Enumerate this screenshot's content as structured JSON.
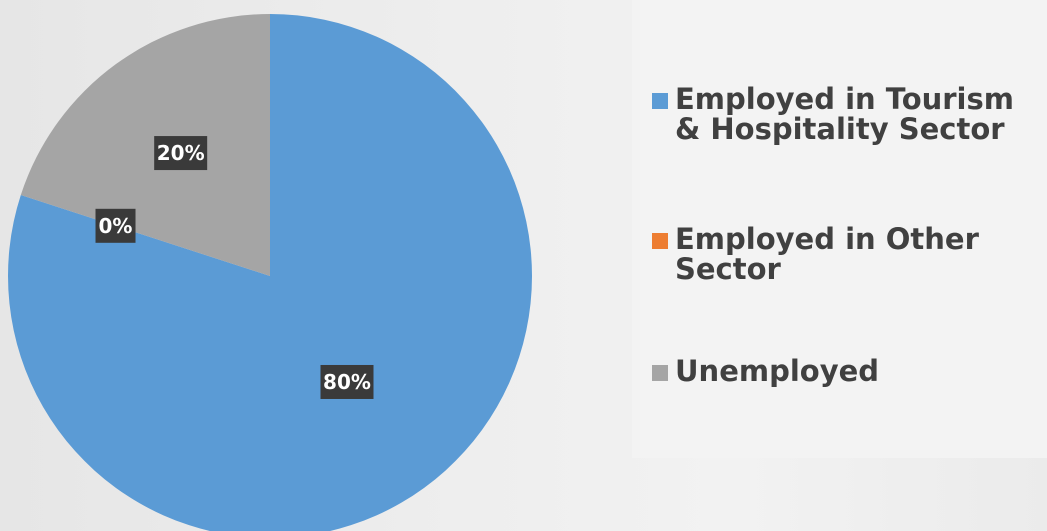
{
  "chart_data": {
    "type": "pie",
    "title": "",
    "categories": [
      "Employed in Tourism & Hospitality Sector",
      "Employed in Other Sector",
      "Unemployed"
    ],
    "values": [
      80,
      0,
      20
    ],
    "data_labels": [
      "80%",
      "0%",
      "20%"
    ],
    "colors": [
      "#5b9bd5",
      "#ed7d31",
      "#a5a5a5"
    ],
    "legend": "right",
    "start_angle_deg": 0,
    "direction": "clockwise"
  }
}
